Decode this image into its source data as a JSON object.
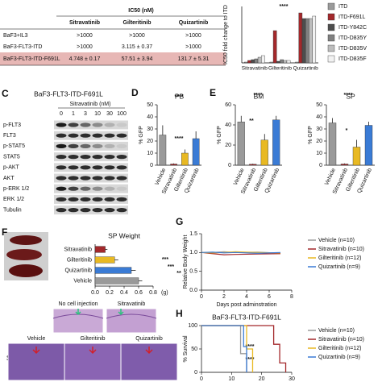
{
  "figure": {
    "table": {
      "caption": "IC50 (nM)",
      "columns": [
        "Sitravatinib",
        "Gilteritinib",
        "Quizartinib"
      ],
      "rows": [
        [
          "BaF3+IL3",
          ">1000",
          ">1000",
          ">1000"
        ],
        [
          "BaF3-FLT3-ITD",
          ">1000",
          "3.115 ± 0.37",
          ">1000"
        ],
        [
          "BaF3-FLT3-ITD-F691L",
          "4.748 ± 0.17",
          "57.51 ± 3.94",
          "131.7 ± 5.31"
        ]
      ]
    },
    "blot": {
      "letter": "C",
      "title": "BaF3-FLT3-ITD-F691L",
      "treatment": "Sitravatinib (nM)",
      "doses": [
        "0",
        "1",
        "3",
        "10",
        "30",
        "100"
      ],
      "proteins": [
        "p-FLT3",
        "FLT3",
        "p-STAT5",
        "STAT5",
        "p-AKT",
        "AKT",
        "p-ERK 1/2",
        "ERK 1/2",
        "Tubulin"
      ]
    },
    "histology": {
      "side_label": "SP",
      "top": [
        "No cell injection",
        "Sitravatinib"
      ],
      "bottom": [
        "Vehicle",
        "Gilteritinib",
        "Quizartinib"
      ]
    }
  },
  "chart_data": [
    {
      "type": "bar",
      "ylabel": "IC50 fold change to ITD",
      "categories": [
        "Sitravatinib",
        "Gilteritinib",
        "Quizartinib"
      ],
      "series": [
        {
          "name": "ITD",
          "color": "#9a9a9a",
          "values": [
            1,
            1,
            1
          ]
        },
        {
          "name": "ITD-F691L",
          "color": "#a3282b",
          "values": [
            3,
            40,
            62
          ]
        },
        {
          "name": "ITD-Y842C",
          "color": "#4d4d4d",
          "values": [
            4,
            2,
            55
          ]
        },
        {
          "name": "ITD-D835Y",
          "color": "#808080",
          "values": [
            5,
            4,
            55
          ]
        },
        {
          "name": "ITD-D835V",
          "color": "#bdbdbd",
          "values": [
            7,
            3,
            55
          ]
        },
        {
          "name": "ITD-D835F",
          "color": "#f2f2f2",
          "values": [
            9,
            3,
            58
          ]
        }
      ],
      "ylim": [
        0,
        70
      ],
      "annotations": [
        "****"
      ]
    },
    {
      "type": "bar",
      "letter": "D",
      "title": "PB",
      "ylabel": "% GFP",
      "categories": [
        "Vehicle",
        "Sitravatinib",
        "Gilteritinib",
        "Quizartinib"
      ],
      "values": [
        25,
        1,
        10,
        22
      ],
      "errors": [
        8,
        0.5,
        3,
        6
      ],
      "colors": [
        "#9a9a9a",
        "#a3282b",
        "#e8b923",
        "#3a7bd5"
      ],
      "ylim": [
        0,
        50
      ],
      "yticks": [
        0,
        10,
        20,
        30,
        40,
        50
      ],
      "annotations": [
        "****",
        "****"
      ]
    },
    {
      "type": "bar",
      "letter": "E",
      "title": "BM",
      "ylabel": "% GFP",
      "categories": [
        "Vehicle",
        "Sitravatinib",
        "Gilteritinib",
        "Quizartinib"
      ],
      "values": [
        43,
        1,
        25,
        45
      ],
      "errors": [
        6,
        0.5,
        6,
        4
      ],
      "colors": [
        "#9a9a9a",
        "#a3282b",
        "#e8b923",
        "#3a7bd5"
      ],
      "ylim": [
        0,
        60
      ],
      "yticks": [
        0,
        20,
        40,
        60
      ],
      "annotations": [
        "****",
        "**"
      ]
    },
    {
      "type": "bar",
      "title": "SP",
      "ylabel": "% GFP",
      "categories": [
        "Vehicle",
        "Sitravatinib",
        "Gilteritinib",
        "Quizartinib"
      ],
      "values": [
        35,
        1,
        15,
        33
      ],
      "errors": [
        4,
        0.5,
        6,
        3
      ],
      "colors": [
        "#9a9a9a",
        "#a3282b",
        "#e8b923",
        "#3a7bd5"
      ],
      "ylim": [
        0,
        50
      ],
      "yticks": [
        0,
        10,
        20,
        30,
        40,
        50
      ],
      "annotations": [
        "****",
        "*"
      ]
    },
    {
      "type": "barh",
      "letter": "F",
      "title": "SP Weight",
      "categories": [
        "Sitravatinib",
        "Gilteritinib",
        "Quizartinib",
        "Vehicle"
      ],
      "values": [
        0.14,
        0.27,
        0.5,
        0.6
      ],
      "errors": [
        0.03,
        0.05,
        0.06,
        0.05
      ],
      "colors": [
        "#a3282b",
        "#e8b923",
        "#3a7bd5",
        "#9a9a9a"
      ],
      "xlim": [
        0,
        0.8
      ],
      "xticks": [
        {
          "value": 0,
          "label": "0.0"
        },
        {
          "value": 0.2,
          "label": "0.2"
        },
        {
          "value": 0.4,
          "label": "0.4"
        },
        {
          "value": 0.6,
          "label": "0.6"
        },
        {
          "value": 0.8,
          "label": "0.8"
        }
      ],
      "xunit": "(g)",
      "annotations": [
        "***",
        "***",
        "**"
      ]
    },
    {
      "type": "line",
      "letter": "G",
      "ylabel": "Relative Body Weight",
      "xlabel": "Days post adminstration",
      "x": [
        0,
        1,
        2,
        3,
        5,
        7
      ],
      "series": [
        {
          "name": "Vehicle (n=10)",
          "color": "#9a9a9a",
          "values": [
            1.0,
            1.0,
            1.02,
            1.0,
            1.01,
            0.98
          ]
        },
        {
          "name": "Sitravatinib (n=10)",
          "color": "#a3282b",
          "values": [
            1.0,
            0.97,
            0.94,
            0.95,
            0.96,
            0.97
          ]
        },
        {
          "name": "Gilteritinib (n=12)",
          "color": "#e8b923",
          "values": [
            1.0,
            0.99,
            1.0,
            1.02,
            1.0,
            0.99
          ]
        },
        {
          "name": "Quizartinib (n=9)",
          "color": "#3a7bd5",
          "values": [
            1.0,
            1.01,
            0.99,
            1.0,
            0.98,
            1.0
          ]
        }
      ],
      "ylim": [
        0,
        1.5
      ],
      "yticks": [
        {
          "value": 0,
          "label": "0.0"
        },
        {
          "value": 0.5,
          "label": "0.5"
        },
        {
          "value": 1,
          "label": "1.0"
        },
        {
          "value": 1.5,
          "label": "1.5"
        }
      ],
      "xlim": [
        0,
        8
      ],
      "xticks": [
        0,
        2,
        4,
        6,
        8
      ]
    },
    {
      "type": "step",
      "letter": "H",
      "title": "BaF3-FLT3-ITD-F691L",
      "ylabel": "% Survival",
      "series": [
        {
          "name": "Vehicle (n=10)",
          "color": "#9a9a9a",
          "x": [
            0,
            13,
            13,
            15,
            15
          ],
          "values": [
            100,
            100,
            40,
            40,
            0
          ]
        },
        {
          "name": "Sitravatinib (n=10)",
          "color": "#a3282b",
          "x": [
            0,
            24,
            24,
            26,
            26,
            28,
            28
          ],
          "values": [
            100,
            100,
            60,
            60,
            20,
            20,
            0
          ]
        },
        {
          "name": "Gilteritinib (n=12)",
          "color": "#e8b923",
          "x": [
            0,
            15,
            15,
            17,
            17
          ],
          "values": [
            100,
            100,
            50,
            50,
            0
          ]
        },
        {
          "name": "Quizartinib (n=9)",
          "color": "#3a7bd5",
          "x": [
            0,
            14,
            14,
            15,
            15
          ],
          "values": [
            100,
            100,
            55,
            55,
            0
          ]
        }
      ],
      "ylim": [
        0,
        100
      ],
      "yticks": [
        0,
        50,
        100
      ],
      "xlim": [
        0,
        30
      ],
      "xticks": [
        0,
        10,
        20,
        30
      ],
      "annotations": [
        "****",
        "****"
      ]
    }
  ]
}
